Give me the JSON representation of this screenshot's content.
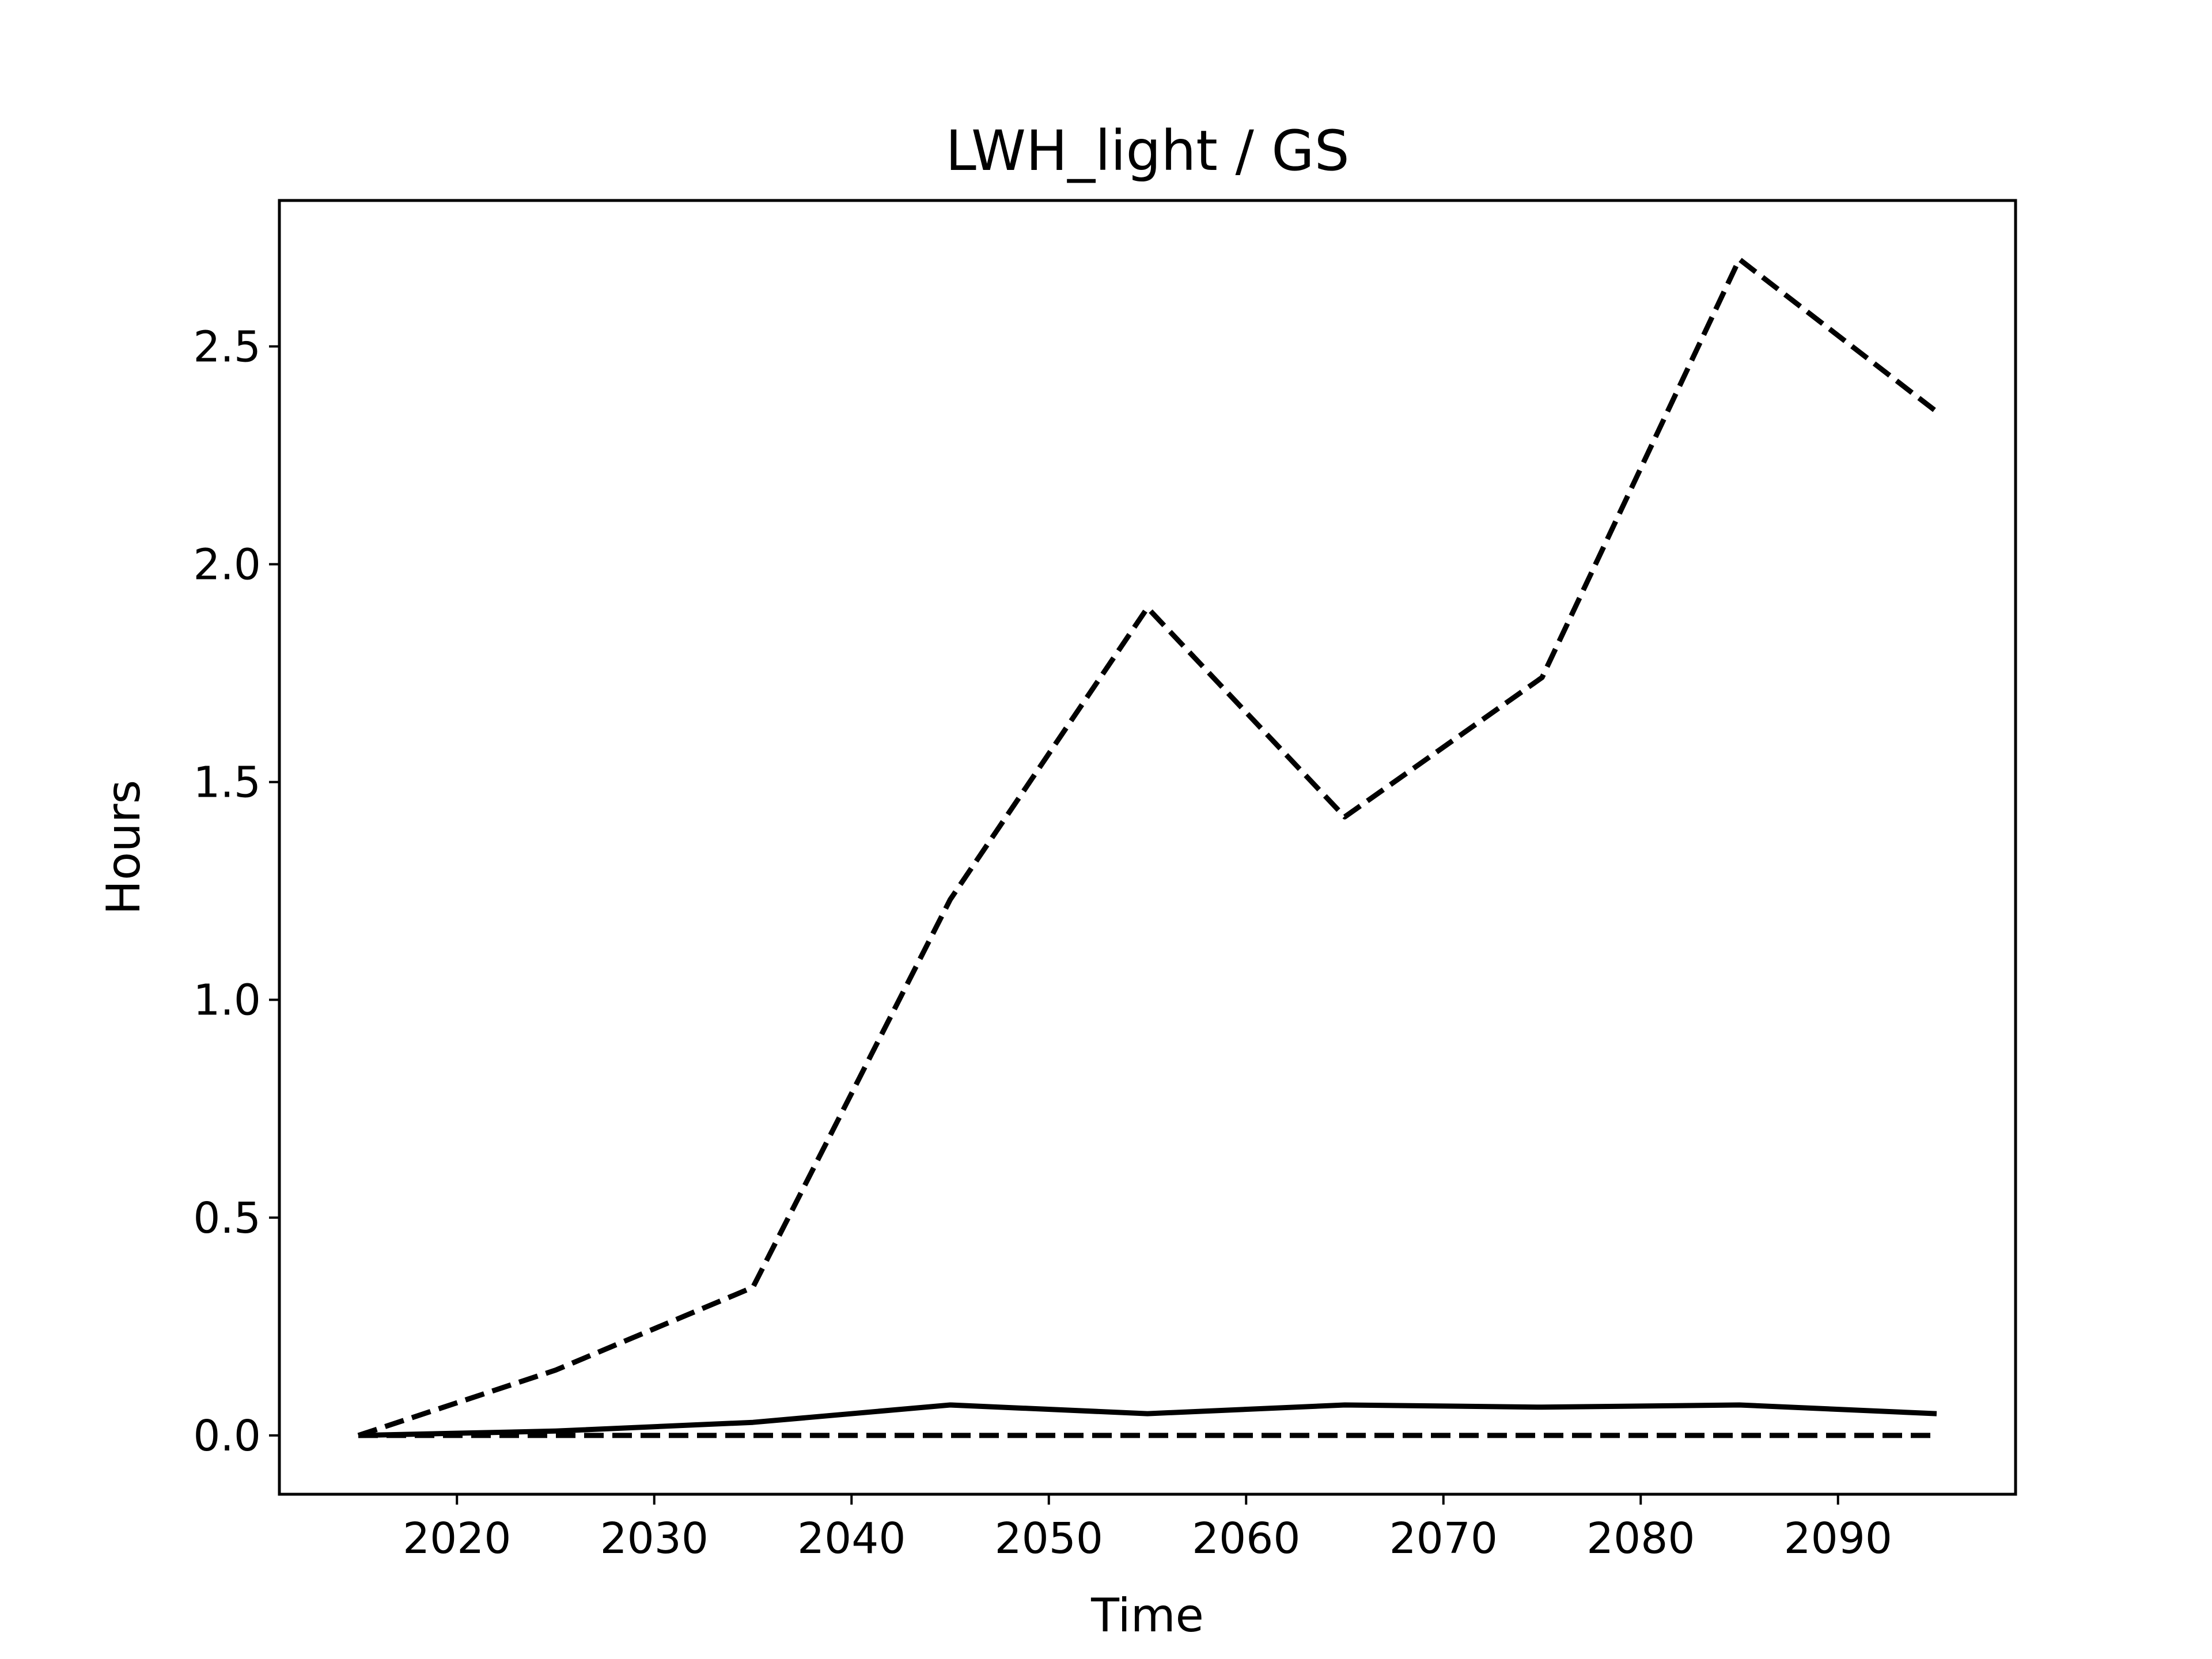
{
  "chart_data": {
    "type": "line",
    "title": "LWH_light / GS",
    "xlabel": "Time",
    "ylabel": "Hours",
    "xlim": [
      2011,
      2099
    ],
    "ylim": [
      -0.135,
      2.835
    ],
    "xticks": [
      2020,
      2030,
      2040,
      2050,
      2060,
      2070,
      2080,
      2090
    ],
    "yticks": [
      0.0,
      0.5,
      1.0,
      1.5,
      2.0,
      2.5
    ],
    "xtick_labels": [
      "2020",
      "2030",
      "2040",
      "2050",
      "2060",
      "2070",
      "2080",
      "2090"
    ],
    "ytick_labels": [
      "0.0",
      "0.5",
      "1.0",
      "1.5",
      "2.0",
      "2.5"
    ],
    "grid": false,
    "x": [
      2015,
      2025,
      2035,
      2045,
      2055,
      2065,
      2075,
      2085,
      2095
    ],
    "series": [
      {
        "style": "dashed",
        "values": [
          0.0,
          0.15,
          0.34,
          1.23,
          1.9,
          1.42,
          1.74,
          2.7,
          2.35
        ]
      },
      {
        "style": "solid",
        "values": [
          0.0,
          0.01,
          0.03,
          0.07,
          0.05,
          0.07,
          0.065,
          0.07,
          0.05
        ]
      },
      {
        "style": "dashed",
        "values": [
          0.0,
          0.0,
          0.0,
          0.0,
          0.0,
          0.0,
          0.0,
          0.0,
          0.0
        ]
      }
    ],
    "colors": {
      "line": "#000000",
      "frame": "#000000",
      "background": "#ffffff"
    }
  }
}
